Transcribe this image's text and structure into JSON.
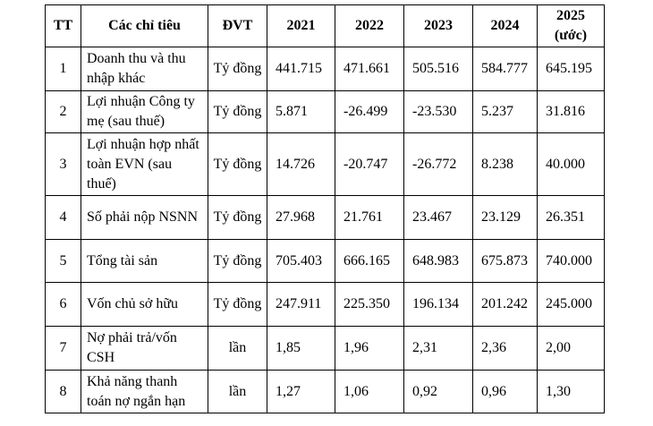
{
  "table": {
    "headers": [
      "TT",
      "Các chỉ tiêu",
      "ĐVT",
      "2021",
      "2022",
      "2023",
      "2024",
      "2025\n(ước)"
    ],
    "rows": [
      [
        "1",
        "Doanh thu và thu nhập khác",
        "Tỷ đồng",
        "441.715",
        "471.661",
        "505.516",
        "584.777",
        "645.195"
      ],
      [
        "2",
        "Lợi nhuận Công ty mẹ (sau thuế)",
        "Tỷ đồng",
        "5.871",
        "-26.499",
        "-23.530",
        "5.237",
        "31.816"
      ],
      [
        "3",
        "Lợi nhuận hợp nhất toàn EVN (sau thuế)",
        "Tỷ đồng",
        "14.726",
        "-20.747",
        "-26.772",
        "8.238",
        "40.000"
      ],
      [
        "4",
        "Số phải nộp NSNN",
        "Tỷ đồng",
        "27.968",
        "21.761",
        "23.467",
        "23.129",
        "26.351"
      ],
      [
        "5",
        "Tổng tài sản",
        "Tỷ đồng",
        "705.403",
        "666.165",
        "648.983",
        "675.873",
        "740.000"
      ],
      [
        "6",
        "Vốn chủ sở hữu",
        "Tỷ đồng",
        "247.911",
        "225.350",
        "196.134",
        "201.242",
        "245.000"
      ],
      [
        "7",
        "Nợ phải trả/vốn CSH",
        "lần",
        "1,85",
        "1,96",
        "2,31",
        "2,36",
        "2,00"
      ],
      [
        "8",
        "Khả năng thanh toán nợ ngắn hạn",
        "lần",
        "1,27",
        "1,06",
        "0,92",
        "0,96",
        "1,30"
      ]
    ]
  }
}
